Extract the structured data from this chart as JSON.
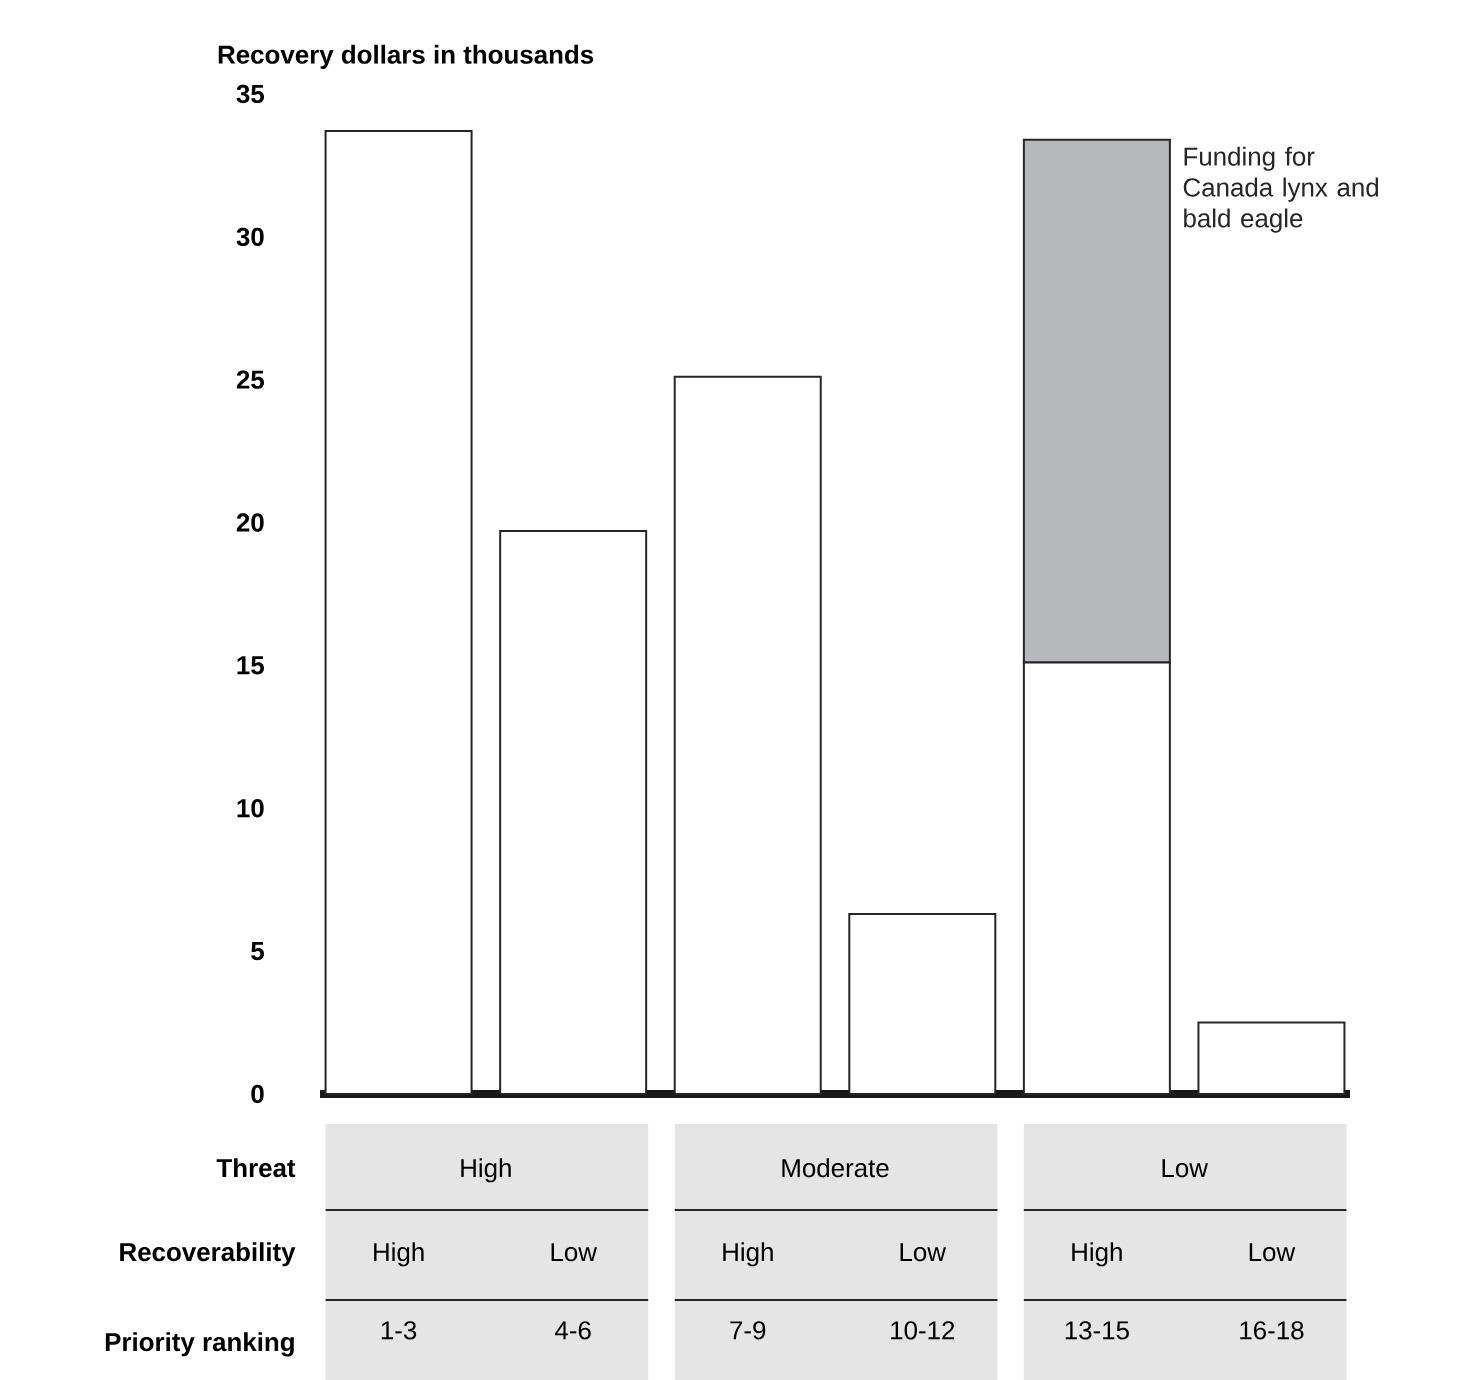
{
  "chart_data": {
    "type": "bar",
    "stacked": true,
    "ylabel": "Recovery dollars in thousands",
    "categories": [
      "1-3",
      "4-6",
      "7-9",
      "10-12",
      "13-15",
      "16-18"
    ],
    "series": [
      {
        "color": "#ffffff",
        "values": [
          33.7,
          19.7,
          25.1,
          6.3,
          15.1,
          2.5
        ]
      },
      {
        "name": "Funding for Canada lynx and bald eagle",
        "color": "#b7b8bb",
        "values": [
          null,
          null,
          null,
          null,
          18.3,
          null
        ]
      }
    ],
    "ylim": [
      0,
      35
    ],
    "yticks": [
      0,
      5,
      10,
      15,
      20,
      25,
      30,
      35
    ],
    "grid": false,
    "annotations": [
      "Threat",
      "Recoverability",
      "Priority ranking",
      "High",
      "Moderate",
      "Low",
      "High",
      "Low",
      "High",
      "Low",
      "High",
      "Low"
    ]
  }
}
